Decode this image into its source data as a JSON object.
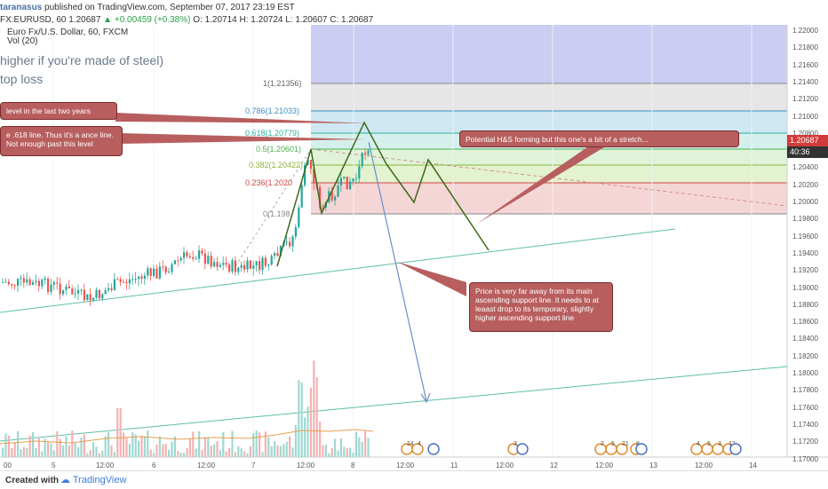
{
  "header": {
    "user": "taranasus",
    "published": "published on TradingView.com, September 07, 2017 23:19 EST",
    "symbol_line": "FX:EURUSD, 60  1.20687",
    "change": "▲ +0.00459 (+0.38%)",
    "ohlc": "O: 1.20714  H: 1.20724  L: 1.20607  C: 1.20687",
    "instrument": "Euro Fx/U.S. Dollar, 60, FXCM",
    "volume": "Vol (20)"
  },
  "overlay_text": {
    "line1": "higher if you're made of steel)",
    "line2": "top loss"
  },
  "price_tags": {
    "last_price": "1.20687",
    "countdown": "40:36"
  },
  "fib_levels": [
    {
      "label": "1(1.21356)",
      "value": 1.21356,
      "color": "#666666"
    },
    {
      "label": "0.786(1.21033)",
      "value": 1.21033,
      "color": "#3a8fc4"
    },
    {
      "label": "0.618(1.20779)",
      "value": 1.20779,
      "color": "#2bb0a0"
    },
    {
      "label": "0.5(1.20601)",
      "value": 1.20601,
      "color": "#4caf50"
    },
    {
      "label": "0.382(1.20422)",
      "value": 1.20422,
      "color": "#8bb53a"
    },
    {
      "label": "0.236(1.2020",
      "value": 1.202,
      "color": "#d04545"
    },
    {
      "label": "0(1.198",
      "value": 1.1985,
      "color": "#888888"
    }
  ],
  "callouts": {
    "top_left_1": "level in the last two years",
    "top_left_2": "e .618 line. Thus it's a ance line. Not enough past this level",
    "hs": "Potential H&S forming but this one's a bit of a stretch...",
    "support": "Price is very far away from its main ascending support line. It needs to at leaast drop to its temporary, slightly higher ascending support line"
  },
  "y_axis": [
    "1.22000",
    "1.21800",
    "1.21600",
    "1.21400",
    "1.21200",
    "1.21000",
    "1.20800",
    "1.20600",
    "1.20400",
    "1.20200",
    "1.20000",
    "1.19800",
    "1.19600",
    "1.19400",
    "1.19200",
    "1.19000",
    "1.18800",
    "1.18600",
    "1.18400",
    "1.18200",
    "1.18000",
    "1.17800",
    "1.17600",
    "1.17400",
    "1.17200",
    "1.17000"
  ],
  "x_axis": [
    "00",
    "5",
    "12:00",
    "6",
    "12:00",
    "7",
    "12:00",
    "8",
    "12:00",
    "11",
    "12:00",
    "12",
    "12:00",
    "13",
    "12:00",
    "14"
  ],
  "event_markers": [
    "24",
    "4",
    "3",
    "2",
    "5",
    "21",
    "8",
    "4",
    "5",
    "3",
    "12"
  ],
  "footer": {
    "created": "Created with",
    "brand": "TradingView"
  },
  "colors": {
    "up": "#26a69a",
    "down": "#ef5350",
    "projection": "#3a6a1a",
    "drop_arrow": "#6a8fc9",
    "support_line": "#5fbfa8"
  }
}
